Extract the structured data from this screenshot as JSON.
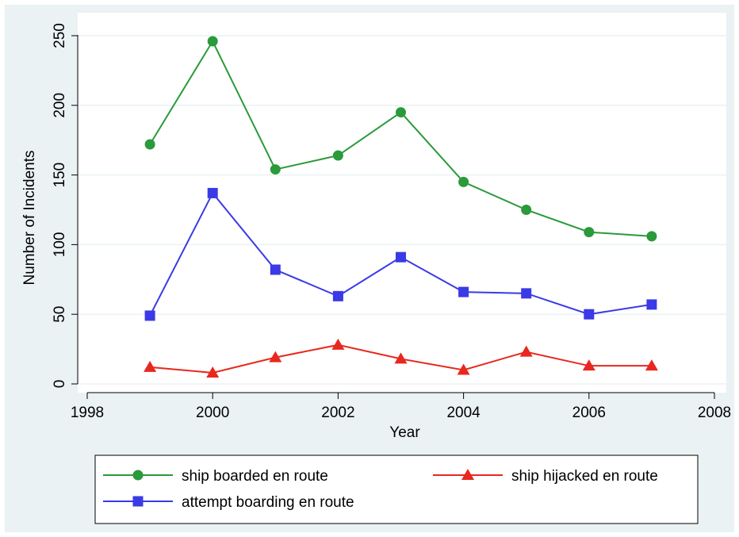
{
  "chart_data": {
    "type": "line",
    "title": "",
    "xlabel": "Year",
    "ylabel": "Number of Incidents",
    "x": [
      1999,
      2000,
      2001,
      2002,
      2003,
      2004,
      2005,
      2006,
      2007
    ],
    "xlim": [
      1998,
      2008
    ],
    "ylim": [
      0,
      250
    ],
    "xticks": [
      "1998",
      "2000",
      "2002",
      "2004",
      "2006",
      "2008"
    ],
    "yticks": [
      "0",
      "50",
      "100",
      "150",
      "200",
      "250"
    ],
    "grid": true,
    "legend_position": "bottom",
    "series": [
      {
        "name": "ship boarded en route",
        "color": "#2a9a3a",
        "marker": "circle",
        "values": [
          172,
          246,
          154,
          164,
          195,
          145,
          125,
          109,
          106
        ]
      },
      {
        "name": "ship hijacked en route",
        "color": "#e8281e",
        "marker": "triangle",
        "values": [
          12,
          8,
          19,
          28,
          18,
          10,
          23,
          13,
          13
        ]
      },
      {
        "name": "attempt boarding en route",
        "color": "#3a3ae6",
        "marker": "square",
        "values": [
          49,
          137,
          82,
          63,
          91,
          66,
          65,
          50,
          57
        ]
      }
    ]
  }
}
